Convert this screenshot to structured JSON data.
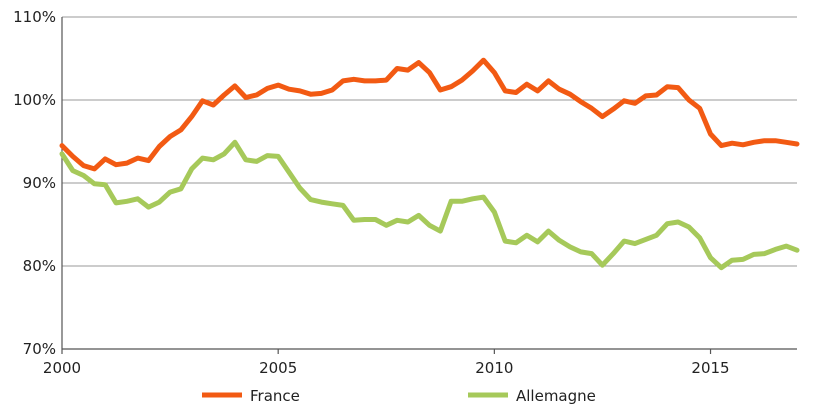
{
  "chart_data": {
    "type": "line",
    "title": "",
    "xlabel": "",
    "ylabel": "",
    "xlim": [
      2000,
      2017
    ],
    "ylim": [
      70,
      110
    ],
    "x_ticks": [
      "2000",
      "2005",
      "2010",
      "2015"
    ],
    "y_ticks": [
      "70%",
      "80%",
      "90%",
      "100%",
      "110%"
    ],
    "grid": "horizontal",
    "legend_position": "bottom",
    "x": [
      2000.0,
      2000.25,
      2000.5,
      2000.75,
      2001.0,
      2001.25,
      2001.5,
      2001.75,
      2002.0,
      2002.25,
      2002.5,
      2002.75,
      2003.0,
      2003.25,
      2003.5,
      2003.75,
      2004.0,
      2004.25,
      2004.5,
      2004.75,
      2005.0,
      2005.25,
      2005.5,
      2005.75,
      2006.0,
      2006.25,
      2006.5,
      2006.75,
      2007.0,
      2007.25,
      2007.5,
      2007.75,
      2008.0,
      2008.25,
      2008.5,
      2008.75,
      2009.0,
      2009.25,
      2009.5,
      2009.75,
      2010.0,
      2010.25,
      2010.5,
      2010.75,
      2011.0,
      2011.25,
      2011.5,
      2011.75,
      2012.0,
      2012.25,
      2012.5,
      2012.75,
      2013.0,
      2013.25,
      2013.5,
      2013.75,
      2014.0,
      2014.25,
      2014.5,
      2014.75,
      2015.0,
      2015.25,
      2015.5,
      2015.75,
      2016.0,
      2016.25,
      2016.5,
      2016.75,
      2017.0
    ],
    "series": [
      {
        "name": "France",
        "color": "#f25a13",
        "values": [
          94.5,
          93.2,
          92.1,
          91.7,
          92.9,
          92.2,
          92.4,
          93.0,
          92.7,
          94.4,
          95.6,
          96.4,
          98.0,
          99.9,
          99.4,
          100.6,
          101.7,
          100.3,
          100.6,
          101.4,
          101.8,
          101.3,
          101.1,
          100.7,
          100.8,
          101.2,
          102.3,
          102.5,
          102.3,
          102.3,
          102.4,
          103.8,
          103.6,
          104.5,
          103.3,
          101.2,
          101.6,
          102.4,
          103.5,
          104.8,
          103.3,
          101.1,
          100.9,
          101.9,
          101.1,
          102.3,
          101.3,
          100.7,
          99.8,
          99.0,
          98.0,
          98.9,
          99.9,
          99.6,
          100.5,
          100.6,
          101.6,
          101.5,
          100.0,
          99.0,
          95.9,
          94.5,
          94.8,
          94.6,
          94.9,
          95.1,
          95.1,
          94.9,
          94.7
        ]
      },
      {
        "name": "Allemagne",
        "color": "#a6c95a",
        "values": [
          93.5,
          91.5,
          90.9,
          89.9,
          89.8,
          87.6,
          87.8,
          88.1,
          87.1,
          87.7,
          88.9,
          89.3,
          91.7,
          93.0,
          92.8,
          93.5,
          94.9,
          92.8,
          92.6,
          93.3,
          93.2,
          91.3,
          89.4,
          88.0,
          87.7,
          87.5,
          87.3,
          85.5,
          85.6,
          85.6,
          84.9,
          85.5,
          85.3,
          86.1,
          84.9,
          84.2,
          87.8,
          87.8,
          88.1,
          88.3,
          86.5,
          83.0,
          82.8,
          83.7,
          82.9,
          84.2,
          83.1,
          82.3,
          81.7,
          81.5,
          80.1,
          81.5,
          83.0,
          82.7,
          83.2,
          83.7,
          85.1,
          85.3,
          84.7,
          83.4,
          81.0,
          79.8,
          80.7,
          80.8,
          81.4,
          81.5,
          82.0,
          82.4,
          81.9
        ]
      }
    ]
  }
}
